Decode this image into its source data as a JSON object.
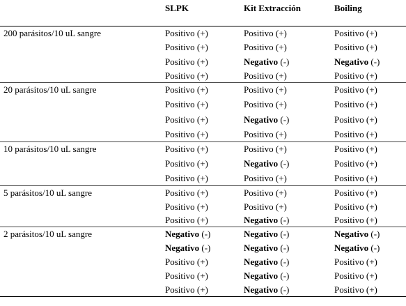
{
  "table": {
    "header": [
      "SLPK",
      "Kit Extracción",
      "Boiling"
    ],
    "groups": [
      {
        "label": "200 parásitos/10 uL sangre",
        "rows": [
          [
            {
              "result": "Positivo",
              "sign": "(+)",
              "bold": false
            },
            {
              "result": "Positivo",
              "sign": "(+)",
              "bold": false
            },
            {
              "result": "Positivo",
              "sign": "(+)",
              "bold": false
            }
          ],
          [
            {
              "result": "Positivo",
              "sign": "(+)",
              "bold": false
            },
            {
              "result": "Positivo",
              "sign": "(+)",
              "bold": false
            },
            {
              "result": "Positivo",
              "sign": "(+)",
              "bold": false
            }
          ],
          [
            {
              "result": "Positivo",
              "sign": "(+)",
              "bold": false
            },
            {
              "result": "Negativo",
              "sign": "(-)",
              "bold": true
            },
            {
              "result": "Negativo",
              "sign": "(-)",
              "bold": true
            }
          ],
          [
            {
              "result": "Positivo",
              "sign": "(+)",
              "bold": false
            },
            {
              "result": "Positivo",
              "sign": "(+)",
              "bold": false
            },
            {
              "result": "Positivo",
              "sign": "(+)",
              "bold": false
            }
          ]
        ]
      },
      {
        "label": "20 parásitos/10 uL sangre",
        "rows": [
          [
            {
              "result": "Positivo",
              "sign": "(+)",
              "bold": false
            },
            {
              "result": "Positivo",
              "sign": "(+)",
              "bold": false
            },
            {
              "result": "Positivo",
              "sign": "(+)",
              "bold": false
            }
          ],
          [
            {
              "result": "Positivo",
              "sign": "(+)",
              "bold": false
            },
            {
              "result": "Positivo",
              "sign": "(+)",
              "bold": false
            },
            {
              "result": "Positivo",
              "sign": "(+)",
              "bold": false
            }
          ],
          [
            {
              "result": "Positivo",
              "sign": "(+)",
              "bold": false
            },
            {
              "result": "Negativo",
              "sign": "(-)",
              "bold": true
            },
            {
              "result": "Positivo",
              "sign": "(+)",
              "bold": false
            }
          ],
          [
            {
              "result": "Positivo",
              "sign": "(+)",
              "bold": false
            },
            {
              "result": "Positivo",
              "sign": "(+)",
              "bold": false
            },
            {
              "result": "Positivo",
              "sign": "(+)",
              "bold": false
            }
          ]
        ]
      },
      {
        "label": "10 parásitos/10 uL sangre",
        "rows": [
          [
            {
              "result": "Positivo",
              "sign": "(+)",
              "bold": false
            },
            {
              "result": "Positivo",
              "sign": "(+)",
              "bold": false
            },
            {
              "result": "Positivo",
              "sign": "(+)",
              "bold": false
            }
          ],
          [
            {
              "result": "Positivo",
              "sign": "(+)",
              "bold": false
            },
            {
              "result": "Negativo",
              "sign": "(-)",
              "bold": true
            },
            {
              "result": "Positivo",
              "sign": "(+)",
              "bold": false
            }
          ],
          [
            {
              "result": "Positivo",
              "sign": "(+)",
              "bold": false
            },
            {
              "result": "Positivo",
              "sign": "(+)",
              "bold": false
            },
            {
              "result": "Positivo",
              "sign": "(+)",
              "bold": false
            }
          ]
        ]
      },
      {
        "label": "5 parásitos/10 uL sangre",
        "rows": [
          [
            {
              "result": "Positivo",
              "sign": "(+)",
              "bold": false
            },
            {
              "result": "Positivo",
              "sign": "(+)",
              "bold": false
            },
            {
              "result": "Positivo",
              "sign": "(+)",
              "bold": false
            }
          ],
          [
            {
              "result": "Positivo",
              "sign": "(+)",
              "bold": false
            },
            {
              "result": "Positivo",
              "sign": "(+)",
              "bold": false
            },
            {
              "result": "Positivo",
              "sign": "(+)",
              "bold": false
            }
          ],
          [
            {
              "result": "Positivo",
              "sign": "(+)",
              "bold": false
            },
            {
              "result": "Negativo",
              "sign": "(-)",
              "bold": true
            },
            {
              "result": "Positivo",
              "sign": "(+)",
              "bold": false
            }
          ]
        ]
      },
      {
        "label": "2 parásitos/10 uL sangre",
        "rows": [
          [
            {
              "result": "Negativo",
              "sign": "(-)",
              "bold": true
            },
            {
              "result": "Negativo",
              "sign": "(-)",
              "bold": true
            },
            {
              "result": "Negativo",
              "sign": "(-)",
              "bold": true
            }
          ],
          [
            {
              "result": "Negativo",
              "sign": "(-)",
              "bold": true
            },
            {
              "result": "Negativo",
              "sign": "(-)",
              "bold": true
            },
            {
              "result": "Negativo",
              "sign": "(-)",
              "bold": true
            }
          ],
          [
            {
              "result": "Positivo",
              "sign": "(+)",
              "bold": false
            },
            {
              "result": "Negativo",
              "sign": "(-)",
              "bold": true
            },
            {
              "result": "Positivo",
              "sign": "(+)",
              "bold": false
            }
          ],
          [
            {
              "result": "Positivo",
              "sign": "(+)",
              "bold": false
            },
            {
              "result": "Negativo",
              "sign": "(-)",
              "bold": true
            },
            {
              "result": "Positivo",
              "sign": "(+)",
              "bold": false
            }
          ],
          [
            {
              "result": "Positivo",
              "sign": "(+)",
              "bold": false
            },
            {
              "result": "Negativo",
              "sign": "(-)",
              "bold": true
            },
            {
              "result": "Positivo",
              "sign": "(+)",
              "bold": false
            }
          ]
        ]
      }
    ]
  }
}
